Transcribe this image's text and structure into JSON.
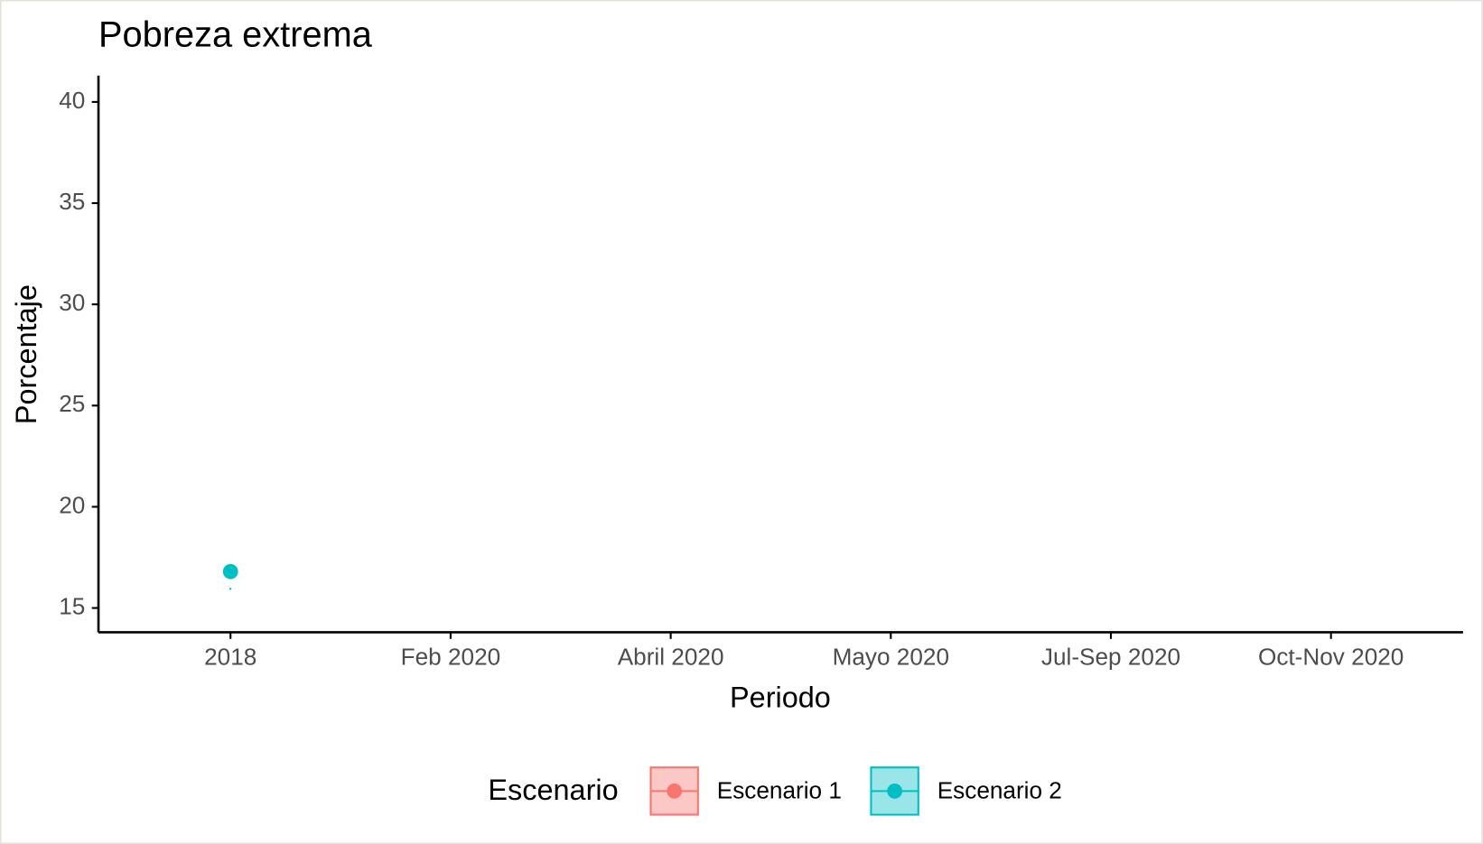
{
  "chart_data": {
    "type": "line",
    "title": "Pobreza extrema",
    "x_label": "Periodo",
    "y_label": "Porcentaje",
    "categories": [
      "2018",
      "Feb 2020",
      "Abril 2020",
      "Mayo 2020",
      "Jul-Sep 2020",
      "Oct-Nov 2020"
    ],
    "series": [
      {
        "name": "Escenario 1",
        "color": "#F8766D",
        "values": [
          null,
          null,
          null,
          null,
          null,
          null
        ],
        "lower": [
          null,
          null,
          null,
          null,
          null,
          null
        ],
        "upper": [
          null,
          null,
          null,
          null,
          null,
          null
        ]
      },
      {
        "name": "Escenario 2",
        "color": "#00BFC4",
        "values": [
          16.8,
          null,
          null,
          null,
          null,
          null
        ],
        "lower": [
          15.9,
          null,
          null,
          null,
          null,
          null
        ],
        "upper": [
          17.7,
          null,
          null,
          null,
          null,
          null
        ]
      }
    ],
    "ylim": [
      13.8,
      41.3
    ],
    "yticks": [
      15,
      20,
      25,
      30,
      35,
      40
    ],
    "legend_title": "Escenario",
    "legend_position": "bottom"
  }
}
